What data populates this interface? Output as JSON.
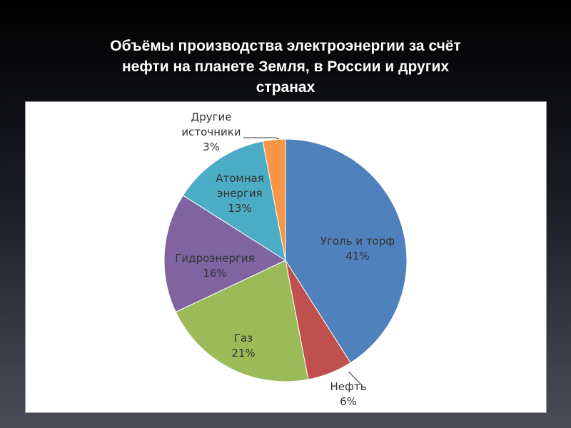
{
  "slide": {
    "title_line1": "Объёмы производства электроэнергии за счёт",
    "title_line2": "нефти на планете Земля, в  России и других",
    "title_line3": "странах"
  },
  "chart_data": {
    "type": "pie",
    "start_angle_deg": 0,
    "direction": "clockwise",
    "slices": [
      {
        "name": "Уголь и торф",
        "label_line1": "Уголь и торф",
        "label_line2": "",
        "percent_label": "41%",
        "value": 41,
        "color": "#4f81bd"
      },
      {
        "name": "Нефть",
        "label_line1": "Нефть",
        "label_line2": "",
        "percent_label": "6%",
        "value": 6,
        "color": "#c0504d"
      },
      {
        "name": "Газ",
        "label_line1": "Газ",
        "label_line2": "",
        "percent_label": "21%",
        "value": 21,
        "color": "#9bbb59"
      },
      {
        "name": "Гидроэнергия",
        "label_line1": "Гидроэнергия",
        "label_line2": "",
        "percent_label": "16%",
        "value": 16,
        "color": "#8064a2"
      },
      {
        "name": "Атомная энергия",
        "label_line1": "Атомная",
        "label_line2": "энергия",
        "percent_label": "13%",
        "value": 13,
        "color": "#4bacc6"
      },
      {
        "name": "Другие источники",
        "label_line1": "Другие",
        "label_line2": "источники",
        "percent_label": "3%",
        "value": 3,
        "color": "#f79646"
      }
    ]
  }
}
